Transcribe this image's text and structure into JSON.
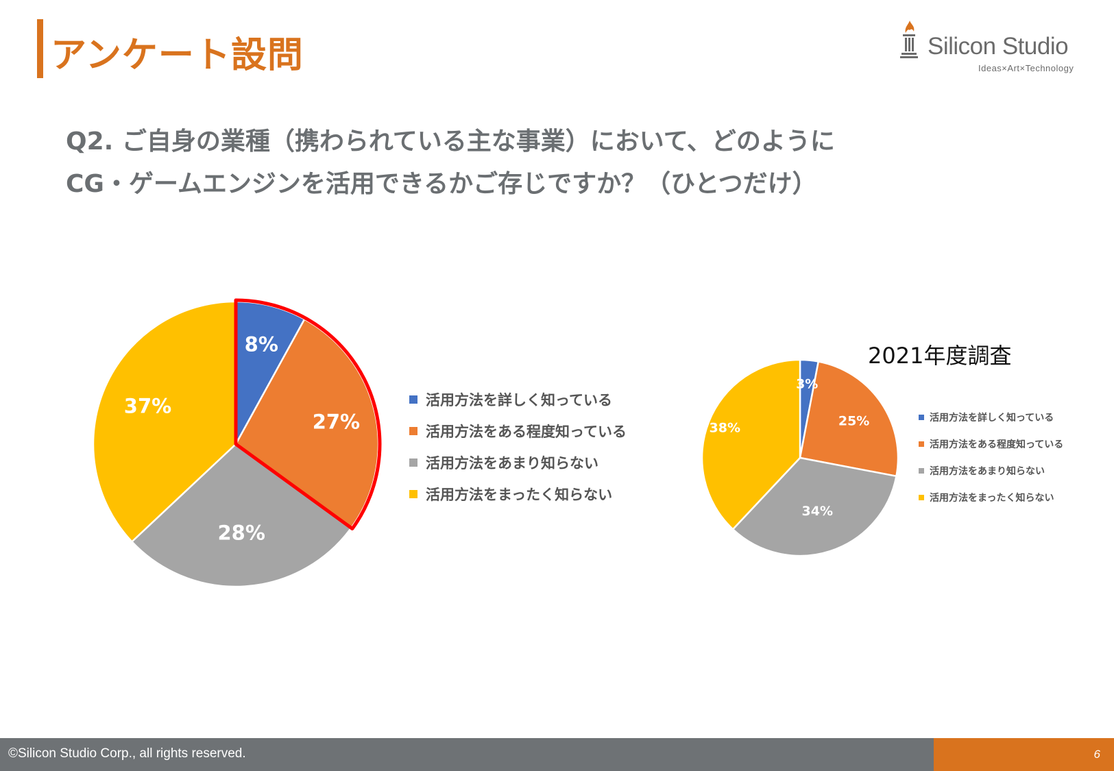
{
  "header": {
    "title": "アンケート設問",
    "logo": {
      "name": "Silicon Studio",
      "tagline": "Ideas×Art×Technology"
    }
  },
  "question": {
    "line1": "Q2. ご自身の業種（携わられている主な事業）において、どのように",
    "line2": "CG・ゲームエンジンを活用できるかご存じですか？（ひとつだけ）"
  },
  "colors": {
    "accent": "#D9731E",
    "blue": "#4472C4",
    "orange": "#ED7D31",
    "gray": "#A5A5A5",
    "yellow": "#FFC000",
    "highlight": "#FF0000"
  },
  "chart_data": [
    {
      "type": "pie",
      "title": "",
      "categories": [
        "活用方法を詳しく知っている",
        "活用方法をある程度知っている",
        "活用方法をあまり知らない",
        "活用方法をまったく知らない"
      ],
      "values": [
        8,
        27,
        28,
        37
      ],
      "labels": [
        "8%",
        "27%",
        "28%",
        "37%"
      ],
      "highlighted": [
        "活用方法を詳しく知っている",
        "活用方法をある程度知っている"
      ],
      "legend_position": "right"
    },
    {
      "type": "pie",
      "title": "2021年度調査",
      "categories": [
        "活用方法を詳しく知っている",
        "活用方法をある程度知っている",
        "活用方法をあまり知らない",
        "活用方法をまったく知らない"
      ],
      "values": [
        3,
        25,
        34,
        38
      ],
      "labels": [
        "3%",
        "25%",
        "34%",
        "38%"
      ],
      "legend_position": "right"
    }
  ],
  "footer": {
    "copyright": "©Silicon Studio Corp., all rights reserved.",
    "page_number": "6"
  }
}
